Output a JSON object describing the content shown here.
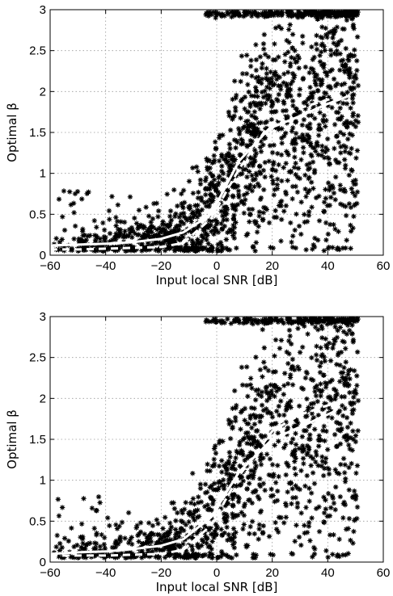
{
  "chart_data": [
    {
      "type": "scatter",
      "xlabel": "Input local SNR [dB]",
      "ylabel": "Optimal β",
      "xlim": [
        -60,
        60
      ],
      "ylim": [
        0,
        3
      ],
      "xticks": [
        -60,
        -40,
        -20,
        0,
        20,
        40,
        60
      ],
      "yticks": [
        0,
        0.5,
        1,
        1.5,
        2,
        2.5,
        3
      ],
      "xtick_labels": [
        "−60",
        "−40",
        "−20",
        "0",
        "20",
        "40",
        "60"
      ],
      "ytick_labels": [
        "0",
        "0.5",
        "1",
        "1.5",
        "2",
        "2.5",
        "3"
      ],
      "grid": true,
      "marker": "*",
      "marker_color": "#000000",
      "series": [
        {
          "style": "solid",
          "color": "#ffffff",
          "x": [
            -60,
            -50,
            -40,
            -30,
            -20,
            -12,
            -2,
            8,
            19,
            30,
            40,
            48
          ],
          "y": [
            0.12,
            0.13,
            0.14,
            0.16,
            0.2,
            0.28,
            0.5,
            1.15,
            1.55,
            1.7,
            1.85,
            1.95
          ]
        },
        {
          "style": "dashed",
          "color": "#ffffff",
          "x": [
            -60,
            -50,
            -40,
            -30,
            -20,
            -12,
            -2,
            8,
            19,
            30,
            40,
            47
          ],
          "y": [
            0.07,
            0.07,
            0.08,
            0.09,
            0.1,
            0.15,
            0.45,
            1.05,
            1.6,
            1.8,
            1.9,
            1.95
          ]
        }
      ]
    },
    {
      "type": "scatter",
      "xlabel": "Input local SNR [dB]",
      "ylabel": "Optimal β",
      "xlim": [
        -60,
        60
      ],
      "ylim": [
        0,
        3
      ],
      "xticks": [
        -60,
        -40,
        -20,
        0,
        20,
        40,
        60
      ],
      "yticks": [
        0,
        0.5,
        1,
        1.5,
        2,
        2.5,
        3
      ],
      "xtick_labels": [
        "−60",
        "−40",
        "−20",
        "0",
        "20",
        "40",
        "60"
      ],
      "ytick_labels": [
        "0",
        "0.5",
        "1",
        "1.5",
        "2",
        "2.5",
        "3"
      ],
      "grid": true,
      "marker": "*",
      "marker_color": "#000000",
      "series": [
        {
          "style": "solid",
          "color": "#ffffff",
          "x": [
            -60,
            -50,
            -40,
            -30,
            -20,
            -12,
            -2,
            8,
            20,
            30,
            43
          ],
          "y": [
            0.1,
            0.12,
            0.13,
            0.16,
            0.2,
            0.28,
            0.55,
            1.1,
            1.5,
            1.65,
            1.85
          ]
        },
        {
          "style": "dashed",
          "color": "#ffffff",
          "x": [
            -60,
            -50,
            -40,
            -30,
            -20,
            -12,
            -2,
            8,
            20,
            30,
            43
          ],
          "y": [
            0.08,
            0.08,
            0.08,
            0.09,
            0.1,
            0.15,
            0.45,
            1.05,
            1.6,
            1.8,
            1.95
          ]
        }
      ]
    }
  ]
}
